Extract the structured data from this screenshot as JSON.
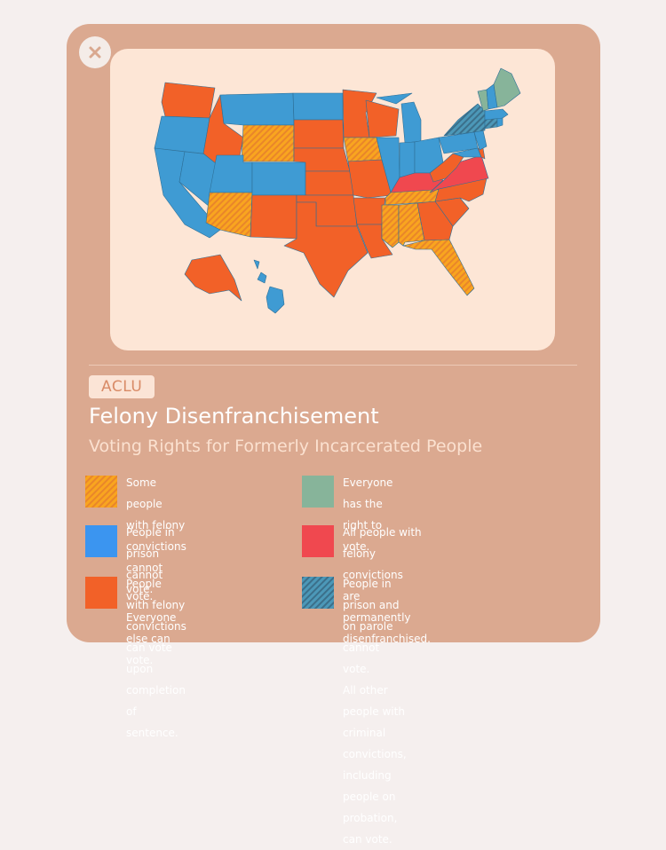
{
  "card": {
    "source": "ACLU",
    "title": "Felony Disenfranchisement",
    "subtitle": "Voting Rights for Formerly Incarcerated People"
  },
  "icons": {
    "close": "close-icon"
  },
  "colors": {
    "card_bg": "#dba990",
    "map_bg": "#fde6d6",
    "some_cannot_vote": "#f9a51f",
    "prison_cannot_vote": "#3f9bd3",
    "after_sentence": "#f26128",
    "everyone_votes": "#87b49a",
    "permanent": "#f0484f",
    "prison_parole": "#4c98b8"
  },
  "legend": [
    {
      "key": "some_cannot_vote",
      "pattern": "hatched-orange",
      "text": "Some people with felony\nconvictions cannot vote."
    },
    {
      "key": "prison_cannot_vote",
      "pattern": "solid",
      "text": "People in prison cannot vote.\nEveryone else can vote."
    },
    {
      "key": "after_sentence",
      "pattern": "solid",
      "text": "People with felony convictions\ncan vote upon completion of\nsentence."
    },
    {
      "key": "everyone_votes",
      "pattern": "solid",
      "text": "Everyone has the right to vote."
    },
    {
      "key": "permanent",
      "pattern": "solid",
      "text": "All people with felony convictions\nare permanently disenfranchised."
    },
    {
      "key": "prison_parole",
      "pattern": "hatched-blue",
      "text": "People in prison and on parole cannot vote.\nAll other people with criminal convictions,\nincluding people on probation, can vote."
    }
  ],
  "map": {
    "states": [
      {
        "id": "WA",
        "cat": "after_sentence"
      },
      {
        "id": "OR",
        "cat": "prison_cannot_vote"
      },
      {
        "id": "CA",
        "cat": "prison_cannot_vote"
      },
      {
        "id": "NV",
        "cat": "prison_cannot_vote"
      },
      {
        "id": "ID",
        "cat": "after_sentence"
      },
      {
        "id": "MT",
        "cat": "prison_cannot_vote"
      },
      {
        "id": "WY",
        "cat": "some_cannot_vote"
      },
      {
        "id": "UT",
        "cat": "prison_cannot_vote"
      },
      {
        "id": "AZ",
        "cat": "some_cannot_vote"
      },
      {
        "id": "CO",
        "cat": "prison_cannot_vote"
      },
      {
        "id": "NM",
        "cat": "after_sentence"
      },
      {
        "id": "ND",
        "cat": "prison_cannot_vote"
      },
      {
        "id": "SD",
        "cat": "after_sentence"
      },
      {
        "id": "NE",
        "cat": "after_sentence"
      },
      {
        "id": "KS",
        "cat": "after_sentence"
      },
      {
        "id": "OK",
        "cat": "after_sentence"
      },
      {
        "id": "TX",
        "cat": "after_sentence"
      },
      {
        "id": "MN",
        "cat": "after_sentence"
      },
      {
        "id": "IA",
        "cat": "some_cannot_vote"
      },
      {
        "id": "MO",
        "cat": "after_sentence"
      },
      {
        "id": "AR",
        "cat": "after_sentence"
      },
      {
        "id": "LA",
        "cat": "after_sentence"
      },
      {
        "id": "WI",
        "cat": "after_sentence"
      },
      {
        "id": "IL",
        "cat": "prison_cannot_vote"
      },
      {
        "id": "MI",
        "cat": "prison_cannot_vote"
      },
      {
        "id": "IN",
        "cat": "prison_cannot_vote"
      },
      {
        "id": "OH",
        "cat": "prison_cannot_vote"
      },
      {
        "id": "KY",
        "cat": "permanent"
      },
      {
        "id": "TN",
        "cat": "some_cannot_vote"
      },
      {
        "id": "MS",
        "cat": "some_cannot_vote"
      },
      {
        "id": "AL",
        "cat": "some_cannot_vote"
      },
      {
        "id": "GA",
        "cat": "after_sentence"
      },
      {
        "id": "FL",
        "cat": "some_cannot_vote"
      },
      {
        "id": "SC",
        "cat": "after_sentence"
      },
      {
        "id": "NC",
        "cat": "after_sentence"
      },
      {
        "id": "VA",
        "cat": "permanent"
      },
      {
        "id": "WV",
        "cat": "after_sentence"
      },
      {
        "id": "PA",
        "cat": "prison_cannot_vote"
      },
      {
        "id": "NY",
        "cat": "prison_parole"
      },
      {
        "id": "VT",
        "cat": "everyone_votes"
      },
      {
        "id": "NH",
        "cat": "prison_cannot_vote"
      },
      {
        "id": "ME",
        "cat": "everyone_votes"
      },
      {
        "id": "MA",
        "cat": "prison_cannot_vote"
      },
      {
        "id": "CT",
        "cat": "prison_parole"
      },
      {
        "id": "RI",
        "cat": "prison_cannot_vote"
      },
      {
        "id": "NJ",
        "cat": "prison_cannot_vote"
      },
      {
        "id": "DE",
        "cat": "after_sentence"
      },
      {
        "id": "MD",
        "cat": "prison_cannot_vote"
      },
      {
        "id": "AK",
        "cat": "after_sentence"
      },
      {
        "id": "HI",
        "cat": "prison_cannot_vote"
      }
    ]
  }
}
